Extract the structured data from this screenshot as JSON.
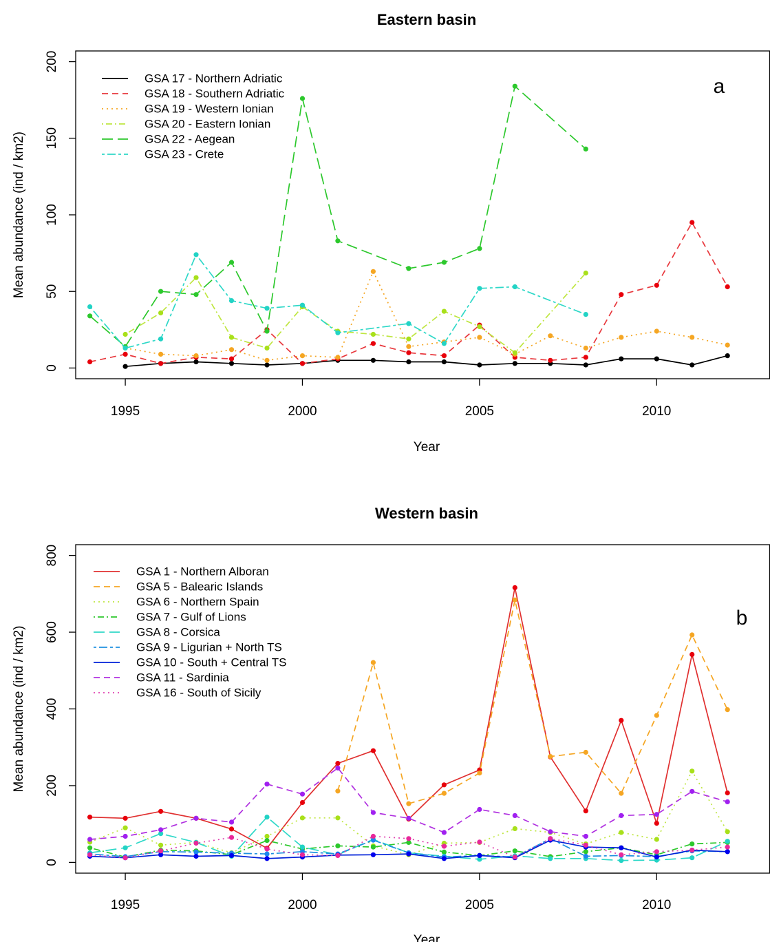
{
  "chart_data": [
    {
      "type": "line",
      "title": "Eastern basin",
      "panel_label": "a",
      "xlabel": "Year",
      "ylabel": "Mean abundance (ind / km2)",
      "xlim": [
        1993.6,
        2013.2
      ],
      "ylim": [
        -7,
        207
      ],
      "x_ticks": [
        1995,
        2000,
        2005,
        2010
      ],
      "y_ticks": [
        0,
        50,
        100,
        150,
        200
      ],
      "legend_position": "top-left",
      "series": [
        {
          "name": "GSA 17 - Northern Adriatic",
          "color": "#000000",
          "marker_color": "#000000",
          "dash": "solid",
          "x": [
            1995,
            1996,
            1997,
            1998,
            1999,
            2000,
            2001,
            2002,
            2003,
            2004,
            2005,
            2006,
            2007,
            2008,
            2009,
            2010,
            2011,
            2012
          ],
          "y": [
            1,
            3,
            4,
            3,
            2,
            3,
            5,
            5,
            4,
            4,
            2,
            3,
            3,
            2,
            6,
            6,
            2,
            8
          ]
        },
        {
          "name": "GSA 18 - Southern Adriatic",
          "color": "#E8383D",
          "marker_color": "#E8000B",
          "dash": "dashed",
          "x": [
            1994,
            1995,
            1996,
            1997,
            1998,
            1999,
            2000,
            2001,
            2002,
            2003,
            2004,
            2005,
            2006,
            2007,
            2008,
            2009,
            2010,
            2011,
            2012
          ],
          "y": [
            4,
            9,
            3,
            7,
            6,
            25,
            3,
            6,
            16,
            10,
            8,
            28,
            7,
            5,
            7,
            48,
            54,
            95,
            53
          ]
        },
        {
          "name": "GSA 19 - Western Ionian",
          "color": "#F5A623",
          "marker_color": "#F5A623",
          "dash": "dotted",
          "x": [
            1995,
            1996,
            1997,
            1998,
            1999,
            2000,
            2001,
            2002,
            2003,
            2004,
            2005,
            2006,
            2007,
            2008,
            2009,
            2010,
            2011,
            2012
          ],
          "y": [
            13,
            9,
            8,
            12,
            5,
            8,
            7,
            63,
            14,
            17,
            20,
            9,
            21,
            13,
            20,
            24,
            20,
            15
          ]
        },
        {
          "name": "GSA 20 - Eastern Ionian",
          "color": "#BFE640",
          "marker_color": "#A8E01A",
          "dash": "dotdash",
          "x": [
            1995,
            1996,
            1997,
            1998,
            1999,
            2000,
            2001,
            2002,
            2003,
            2004,
            2005,
            2006,
            2008
          ],
          "y": [
            22,
            36,
            59,
            20,
            13,
            40,
            24,
            22,
            19,
            37,
            27,
            10,
            62
          ]
        },
        {
          "name": "GSA 22 - Aegean",
          "color": "#2CC82C",
          "marker_color": "#2CC82C",
          "dash": "longdash",
          "x": [
            1994,
            1995,
            1996,
            1997,
            1998,
            1999,
            2000,
            2001,
            2003,
            2004,
            2005,
            2006,
            2008
          ],
          "y": [
            34,
            14,
            50,
            48,
            69,
            24,
            176,
            83,
            65,
            69,
            78,
            184,
            143
          ]
        },
        {
          "name": "GSA 23 - Crete",
          "color": "#2ED8C8",
          "marker_color": "#22D3C5",
          "dash": "twodash",
          "x": [
            1994,
            1995,
            1996,
            1997,
            1998,
            1999,
            2000,
            2001,
            2003,
            2004,
            2005,
            2006,
            2008
          ],
          "y": [
            40,
            13,
            19,
            74,
            44,
            39,
            41,
            23,
            29,
            16,
            52,
            53,
            35
          ]
        }
      ]
    },
    {
      "type": "line",
      "title": "Western basin",
      "panel_label": "b",
      "xlabel": "Year",
      "ylabel": "Mean abundance (ind / km2)",
      "xlim": [
        1993.6,
        2013.2
      ],
      "ylim": [
        -28,
        828
      ],
      "x_ticks": [
        1995,
        2000,
        2005,
        2010
      ],
      "y_ticks": [
        0,
        200,
        400,
        600,
        800
      ],
      "legend_position": "top-left",
      "series": [
        {
          "name": "GSA  1 - Northern Alboran",
          "color": "#E03030",
          "marker_color": "#E8000B",
          "dash": "solid",
          "x": [
            1994,
            1995,
            1996,
            1997,
            1998,
            1999,
            2000,
            2001,
            2002,
            2003,
            2004,
            2005,
            2006,
            2007,
            2008,
            2009,
            2010,
            2011,
            2012
          ],
          "y": [
            118,
            115,
            133,
            115,
            87,
            37,
            156,
            258,
            291,
            113,
            202,
            241,
            716,
            275,
            134,
            370,
            102,
            542,
            181
          ]
        },
        {
          "name": "GSA  5 - Balearic Islands",
          "color": "#F5A623",
          "marker_color": "#F5A623",
          "dash": "dashed",
          "x": [
            2001,
            2002,
            2003,
            2004,
            2005,
            2006,
            2007,
            2008,
            2009,
            2010,
            2011,
            2012
          ],
          "y": [
            186,
            521,
            153,
            180,
            233,
            684,
            276,
            287,
            180,
            383,
            593,
            398
          ]
        },
        {
          "name": "GSA  6 - Northern Spain",
          "color": "#BFE640",
          "marker_color": "#A8E01A",
          "dash": "dotted",
          "x": [
            1994,
            1995,
            1996,
            1997,
            1998,
            1999,
            2000,
            2001,
            2002,
            2003,
            2004,
            2005,
            2006,
            2007,
            2008,
            2009,
            2010,
            2011,
            2012
          ],
          "y": [
            53,
            90,
            45,
            52,
            25,
            68,
            116,
            116,
            43,
            20,
            50,
            52,
            88,
            78,
            48,
            78,
            60,
            238,
            80
          ]
        },
        {
          "name": "GSA  7 - Gulf of Lions",
          "color": "#2CC82C",
          "marker_color": "#2CC82C",
          "dash": "dotdash",
          "x": [
            1994,
            1995,
            1996,
            1997,
            1998,
            1999,
            2000,
            2001,
            2002,
            2003,
            2004,
            2005,
            2006,
            2007,
            2008,
            2009,
            2010,
            2011,
            2012
          ],
          "y": [
            38,
            14,
            32,
            30,
            20,
            57,
            35,
            43,
            40,
            52,
            27,
            18,
            30,
            15,
            28,
            38,
            20,
            48,
            52
          ]
        },
        {
          "name": "GSA  8 - Corsica",
          "color": "#2ED8C8",
          "marker_color": "#22D3C5",
          "dash": "longdash",
          "x": [
            1994,
            1995,
            1996,
            1997,
            1998,
            1999,
            2000,
            2001,
            2002,
            2003,
            2004,
            2005,
            2006,
            2007,
            2008,
            2009,
            2010,
            2011,
            2012
          ],
          "y": [
            25,
            38,
            75,
            52,
            16,
            118,
            40,
            20,
            60,
            25,
            16,
            8,
            17,
            10,
            10,
            5,
            6,
            12,
            55
          ]
        },
        {
          "name": "GSA  9 - Ligurian + North TS",
          "color": "#1E90E0",
          "marker_color": "#1C86EE",
          "dash": "twodash",
          "x": [
            1994,
            1995,
            1996,
            1997,
            1998,
            1999,
            2000,
            2001,
            2002,
            2003,
            2004,
            2005,
            2006,
            2007,
            2008,
            2009,
            2010,
            2011,
            2012
          ],
          "y": [
            22,
            15,
            28,
            27,
            24,
            22,
            28,
            22,
            58,
            25,
            14,
            18,
            14,
            62,
            16,
            18,
            15,
            30,
            28
          ]
        },
        {
          "name": "GSA 10 - South + Central TS",
          "color": "#0020D8",
          "marker_color": "#0000EE",
          "dash": "solid",
          "x": [
            1994,
            1995,
            1996,
            1997,
            1998,
            1999,
            2000,
            2001,
            2002,
            2003,
            2004,
            2005,
            2006,
            2007,
            2008,
            2009,
            2010,
            2011,
            2012
          ],
          "y": [
            16,
            12,
            20,
            16,
            18,
            10,
            14,
            19,
            20,
            22,
            10,
            18,
            12,
            58,
            40,
            38,
            14,
            32,
            28
          ]
        },
        {
          "name": "GSA 11 - Sardinia",
          "color": "#B030E0",
          "marker_color": "#A020F0",
          "dash": "dashed",
          "x": [
            1994,
            1995,
            1996,
            1997,
            1998,
            1999,
            2000,
            2001,
            2002,
            2003,
            2004,
            2005,
            2006,
            2007,
            2008,
            2009,
            2010,
            2011,
            2012
          ],
          "y": [
            60,
            68,
            85,
            115,
            105,
            204,
            178,
            246,
            130,
            115,
            78,
            138,
            122,
            80,
            68,
            122,
            125,
            185,
            158
          ]
        },
        {
          "name": "GSA 16 - South of Sicily",
          "color": "#E040B0",
          "marker_color": "#E8289A",
          "dash": "dotted",
          "x": [
            1994,
            1995,
            1996,
            1997,
            1998,
            1999,
            2000,
            2001,
            2002,
            2003,
            2004,
            2005,
            2006,
            2007,
            2008,
            2009,
            2010,
            2011,
            2012
          ],
          "y": [
            20,
            12,
            30,
            50,
            65,
            35,
            20,
            18,
            68,
            62,
            42,
            53,
            14,
            62,
            45,
            20,
            28,
            32,
            40
          ]
        }
      ]
    }
  ]
}
